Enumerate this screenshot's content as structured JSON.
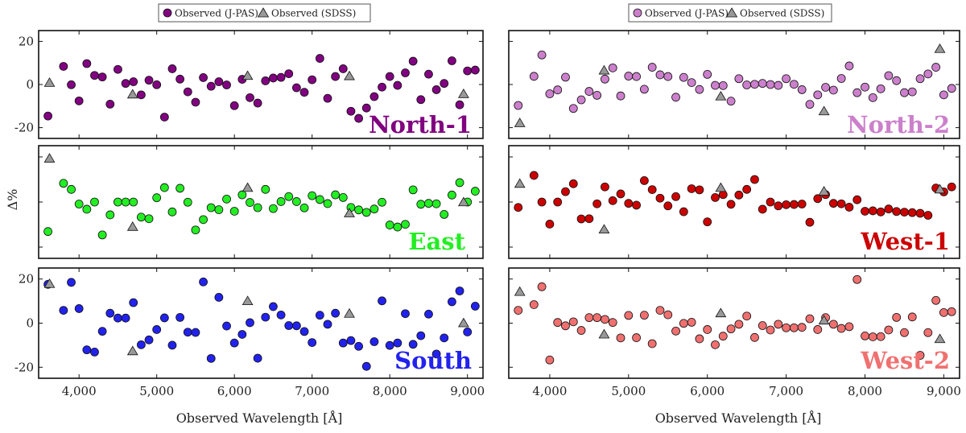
{
  "xlabel": "Observed Wavelength [Å]",
  "ylabel": "Δ%",
  "xlim": [
    3480,
    9200
  ],
  "xticks": [
    4000,
    5000,
    6000,
    7000,
    8000,
    9000
  ],
  "xtick_labels": [
    "4,000",
    "5,000",
    "6,000",
    "7,000",
    "8,000",
    "9,000"
  ],
  "ylim": [
    -25,
    25
  ],
  "yticks": [
    -20,
    0,
    20
  ],
  "legend": {
    "jpas_label": "Observed (J-PAS)",
    "sdss_label": "Observed (SDSS)"
  },
  "colors": {
    "North-1": "#800080",
    "North-2": "#cc80cc",
    "East": "#22ee22",
    "West-1": "#cc0000",
    "South": "#2222ee",
    "West-2": "#f07070",
    "sdss": "#999999"
  },
  "chart_data": {
    "type": "scatter",
    "jpas_wavelengths": [
      3600,
      3800,
      3900,
      4000,
      4100,
      4200,
      4300,
      4400,
      4500,
      4600,
      4700,
      4800,
      4900,
      5000,
      5100,
      5200,
      5300,
      5400,
      5500,
      5600,
      5700,
      5800,
      5900,
      6000,
      6100,
      6200,
      6300,
      6400,
      6500,
      6600,
      6700,
      6800,
      6900,
      7000,
      7100,
      7200,
      7300,
      7400,
      7500,
      7600,
      7700,
      7800,
      7900,
      8000,
      8100,
      8200,
      8300,
      8400,
      8500,
      8600,
      8700,
      8800,
      8900,
      9000,
      9100
    ],
    "sdss_wavelengths": [
      3620,
      4690,
      6170,
      7480,
      8950
    ],
    "panels": [
      {
        "name": "North-1",
        "jpas": [
          -14.6,
          8.4,
          -0.1,
          -7.6,
          9.7,
          4.2,
          3.5,
          -9.1,
          7.0,
          0.5,
          1.3,
          -4.8,
          2.0,
          -0.1,
          -15.1,
          7.3,
          2.5,
          -3.4,
          -8.2,
          3.2,
          -0.8,
          1.3,
          -0.2,
          -9.8,
          2.4,
          -6.1,
          -8.6,
          1.7,
          3.0,
          3.3,
          5.0,
          -1.5,
          -3.6,
          2.2,
          12.1,
          -6.4,
          3.7,
          7.3,
          -12.4,
          -15.7,
          -10.9,
          -5.6,
          -1.2,
          3.7,
          -0.4,
          5.4,
          10.8,
          -7.0,
          4.8,
          -2.4,
          0.5,
          11.0,
          -9.4,
          6.3,
          6.7
        ],
        "sdss": [
          0.8,
          -4.6,
          4.0,
          3.9,
          -4.4
        ]
      },
      {
        "name": "North-2",
        "jpas": [
          -9.7,
          3.8,
          13.7,
          -4.3,
          -2.5,
          3.4,
          -11.1,
          -7.1,
          -3.2,
          -5.0,
          2.5,
          7.7,
          -5.3,
          3.9,
          3.7,
          -2.2,
          8.0,
          4.5,
          3.7,
          -5.9,
          3.3,
          0.9,
          -2.3,
          4.7,
          -0.4,
          -0.5,
          -7.7,
          2.7,
          -0.2,
          0.1,
          0.5,
          0.0,
          -0.4,
          2.7,
          0.1,
          -2.4,
          -9.2,
          -4.8,
          -1.3,
          -2.6,
          2.8,
          8.6,
          -3.8,
          -1.2,
          -6.1,
          -2.0,
          4.1,
          1.8,
          -3.8,
          -3.4,
          2.7,
          4.9,
          8.0,
          -4.8,
          -1.8
        ],
        "sdss": [
          -17.9,
          6.5,
          -5.5,
          -12.4,
          16.5
        ]
      },
      {
        "name": "East",
        "jpas": [
          -13.1,
          8.3,
          5.6,
          -0.9,
          -3.2,
          0.0,
          -14.6,
          -5.7,
          0.0,
          0.0,
          0.0,
          -6.7,
          -7.4,
          1.9,
          6.4,
          -4.4,
          6.1,
          -0.1,
          -12.4,
          -7.8,
          -2.5,
          -3.4,
          1.3,
          -4.1,
          3.2,
          -0.2,
          -2.5,
          5.6,
          -2.9,
          0.2,
          2.4,
          0.2,
          -2.6,
          2.8,
          1.1,
          -0.7,
          3.2,
          2.0,
          -2.4,
          -3.5,
          -4.6,
          -3.1,
          -0.1,
          -10.2,
          -11.1,
          -9.9,
          5.4,
          -1.0,
          -0.6,
          -0.8,
          -5.5,
          3.1,
          8.6,
          0.0,
          4.8
        ],
        "sdss": [
          19.3,
          -11.0,
          6.3,
          -5.0,
          -0.1
        ]
      },
      {
        "name": "West-1",
        "jpas": [
          -2.4,
          11.8,
          0.0,
          -9.8,
          0.0,
          4.6,
          8.1,
          -7.5,
          -7.4,
          -0.8,
          6.7,
          0.6,
          3.6,
          -0.6,
          -1.4,
          9.5,
          5.5,
          1.7,
          -1.7,
          2.4,
          -4.3,
          5.9,
          5.4,
          -8.8,
          2.0,
          3.3,
          -1.0,
          3.1,
          5.6,
          10.0,
          -3.2,
          0.0,
          -1.7,
          -1.2,
          -1.1,
          -0.9,
          -9.0,
          1.5,
          3.3,
          -0.6,
          -0.8,
          -2.3,
          1.0,
          -4.1,
          -3.9,
          -4.4,
          -3.1,
          -4.2,
          -4.5,
          -4.7,
          -5.0,
          -5.9,
          6.2,
          4.5,
          6.7
        ],
        "sdss": [
          8.1,
          -12.2,
          6.3,
          4.7,
          5.6
        ]
      },
      {
        "name": "South",
        "jpas": [
          17.6,
          5.8,
          18.5,
          6.6,
          -12.1,
          -13.1,
          -3.7,
          4.5,
          2.3,
          2.3,
          9.3,
          -9.8,
          -7.6,
          -2.9,
          2.4,
          -10.0,
          2.6,
          -4.1,
          -4.2,
          18.7,
          -16.0,
          11.7,
          -1.3,
          -9.0,
          -5.1,
          0.2,
          -15.9,
          2.7,
          7.5,
          3.7,
          -1.1,
          -1.2,
          -3.8,
          -8.8,
          3.6,
          -0.5,
          4.5,
          -9.0,
          -7.9,
          -10.5,
          -19.6,
          -8.4,
          10.1,
          -10.1,
          -9.0,
          4.3,
          -9.6,
          -5.7,
          4.1,
          -14.0,
          -6.7,
          9.7,
          14.6,
          -4.0,
          7.7
        ],
        "sdss": [
          17.8,
          -12.7,
          10.0,
          4.3,
          0.0
        ]
      },
      {
        "name": "West-2",
        "jpas": [
          5.8,
          8.4,
          16.5,
          -16.7,
          0.3,
          -1.2,
          0.6,
          -3.3,
          2.5,
          2.5,
          1.7,
          0.3,
          -6.7,
          3.5,
          -6.6,
          3.6,
          -9.3,
          5.8,
          3.8,
          -3.6,
          -0.1,
          0.4,
          -7.1,
          -2.9,
          -9.8,
          -5.9,
          -2.6,
          -0.5,
          3.2,
          -6.5,
          -1.1,
          -3.1,
          -0.5,
          -2.1,
          -2.1,
          -1.9,
          2.0,
          -2.9,
          2.5,
          -0.5,
          -2.4,
          -1.6,
          19.8,
          -5.8,
          -6.2,
          -6.1,
          -3.1,
          2.6,
          -4.3,
          2.8,
          -14.6,
          -4.3,
          10.3,
          4.8,
          5.2
        ],
        "sdss": [
          14.2,
          -5.1,
          4.5,
          1.2,
          -7.2
        ]
      }
    ],
    "legend_placement": "top-center"
  }
}
